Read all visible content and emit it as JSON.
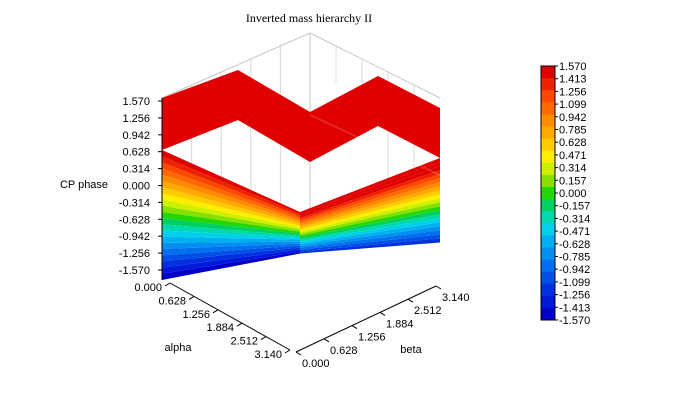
{
  "chart_data": {
    "type": "surface3d",
    "title": "Inverted mass hierarchy II",
    "xlabel": "alpha",
    "ylabel": "beta",
    "zlabel": "CP phase",
    "x_ticks": [
      "0.000",
      "0.628",
      "1.256",
      "1.884",
      "2.512",
      "3.140"
    ],
    "y_ticks": [
      "0.000",
      "0.628",
      "1.256",
      "1.884",
      "2.512",
      "3.140"
    ],
    "z_ticks": [
      "1.570",
      "1.256",
      "0.942",
      "0.628",
      "0.314",
      "0.000",
      "-0.314",
      "-0.628",
      "-0.942",
      "-1.256",
      "-1.570"
    ],
    "xlim": [
      0,
      3.14
    ],
    "ylim": [
      0,
      3.14
    ],
    "zlim": [
      -1.57,
      1.57
    ],
    "colorbar_labels": [
      "1.570",
      "1.413",
      "1.256",
      "1.099",
      "0.942",
      "0.785",
      "0.628",
      "0.471",
      "0.314",
      "0.157",
      "0.000",
      "-0.157",
      "-0.314",
      "-0.471",
      "-0.628",
      "-0.785",
      "-0.942",
      "-1.099",
      "-1.256",
      "-1.413",
      "-1.570"
    ],
    "colorbar_colors": [
      "#e00000",
      "#ee2200",
      "#fc4800",
      "#ff6a00",
      "#ff8c00",
      "#ffaa00",
      "#ffcc00",
      "#ffee00",
      "#ccf000",
      "#88e000",
      "#22d800",
      "#00d060",
      "#00d8b0",
      "#00d0e8",
      "#00b0f0",
      "#0090f0",
      "#0070ee",
      "#0050e8",
      "#0030e0",
      "#0018d8",
      "#0000cc"
    ]
  }
}
